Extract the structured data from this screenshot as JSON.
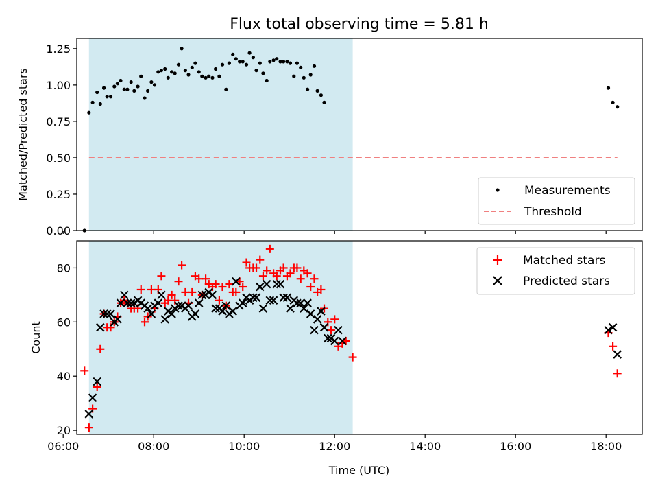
{
  "chart_data": [
    {
      "type": "scatter",
      "title": "Flux total observing time = 5.81 h",
      "xlabel": "",
      "ylabel": "Matched/Predicted stars",
      "xlim": [
        6.3,
        18.8
      ],
      "ylim": [
        0.0,
        1.32
      ],
      "xticks": [
        6,
        8,
        10,
        12,
        14,
        16,
        18
      ],
      "yticks": [
        0.0,
        0.25,
        0.5,
        0.75,
        1.0,
        1.25
      ],
      "ytick_labels": [
        "0.00",
        "0.25",
        "0.50",
        "0.75",
        "1.00",
        "1.25"
      ],
      "grid": false,
      "legend_position": "lower right",
      "observing_window": [
        6.57,
        12.4
      ],
      "window_color": "#add8e6",
      "series": [
        {
          "name": "Measurements",
          "marker": "dot",
          "color": "#000000",
          "points": [
            [
              6.47,
              0.0
            ],
            [
              6.57,
              0.81
            ],
            [
              6.65,
              0.88
            ],
            [
              6.75,
              0.95
            ],
            [
              6.82,
              0.87
            ],
            [
              6.9,
              0.98
            ],
            [
              6.97,
              0.92
            ],
            [
              7.05,
              0.92
            ],
            [
              7.13,
              0.99
            ],
            [
              7.2,
              1.01
            ],
            [
              7.27,
              1.03
            ],
            [
              7.35,
              0.97
            ],
            [
              7.42,
              0.97
            ],
            [
              7.5,
              1.02
            ],
            [
              7.57,
              0.96
            ],
            [
              7.65,
              0.99
            ],
            [
              7.72,
              1.06
            ],
            [
              7.8,
              0.91
            ],
            [
              7.87,
              0.96
            ],
            [
              7.95,
              1.02
            ],
            [
              8.02,
              1.0
            ],
            [
              8.1,
              1.09
            ],
            [
              8.17,
              1.1
            ],
            [
              8.25,
              1.11
            ],
            [
              8.32,
              1.05
            ],
            [
              8.4,
              1.09
            ],
            [
              8.47,
              1.08
            ],
            [
              8.55,
              1.14
            ],
            [
              8.62,
              1.25
            ],
            [
              8.7,
              1.1
            ],
            [
              8.77,
              1.07
            ],
            [
              8.85,
              1.12
            ],
            [
              8.92,
              1.15
            ],
            [
              9.0,
              1.09
            ],
            [
              9.07,
              1.06
            ],
            [
              9.15,
              1.05
            ],
            [
              9.22,
              1.06
            ],
            [
              9.3,
              1.05
            ],
            [
              9.37,
              1.11
            ],
            [
              9.45,
              1.06
            ],
            [
              9.52,
              1.14
            ],
            [
              9.6,
              0.97
            ],
            [
              9.67,
              1.15
            ],
            [
              9.75,
              1.21
            ],
            [
              9.82,
              1.18
            ],
            [
              9.9,
              1.16
            ],
            [
              9.97,
              1.16
            ],
            [
              10.05,
              1.14
            ],
            [
              10.12,
              1.22
            ],
            [
              10.2,
              1.19
            ],
            [
              10.27,
              1.1
            ],
            [
              10.35,
              1.15
            ],
            [
              10.42,
              1.08
            ],
            [
              10.5,
              1.03
            ],
            [
              10.57,
              1.16
            ],
            [
              10.65,
              1.17
            ],
            [
              10.72,
              1.18
            ],
            [
              10.8,
              1.16
            ],
            [
              10.87,
              1.16
            ],
            [
              10.95,
              1.16
            ],
            [
              11.02,
              1.15
            ],
            [
              11.1,
              1.06
            ],
            [
              11.17,
              1.15
            ],
            [
              11.25,
              1.12
            ],
            [
              11.32,
              1.05
            ],
            [
              11.4,
              0.97
            ],
            [
              11.47,
              1.07
            ],
            [
              11.55,
              1.13
            ],
            [
              11.62,
              0.96
            ],
            [
              11.7,
              0.93
            ],
            [
              11.77,
              0.88
            ],
            [
              18.05,
              0.98
            ],
            [
              18.15,
              0.88
            ],
            [
              18.25,
              0.85
            ]
          ]
        },
        {
          "name": "Threshold",
          "style": "dashed",
          "color": "#f08080",
          "x": [
            6.57,
            18.25
          ],
          "y": [
            0.5,
            0.5
          ]
        }
      ]
    },
    {
      "type": "scatter",
      "title": "",
      "xlabel": "Time (UTC)",
      "ylabel": "Count",
      "xlim": [
        6.3,
        18.8
      ],
      "ylim": [
        18.5,
        90.0
      ],
      "xticks": [
        6,
        8,
        10,
        12,
        14,
        16,
        18
      ],
      "xtick_labels": [
        "06:00",
        "08:00",
        "10:00",
        "12:00",
        "14:00",
        "16:00",
        "18:00"
      ],
      "yticks": [
        20,
        40,
        60,
        80
      ],
      "ytick_labels": [
        "20",
        "40",
        "60",
        "80"
      ],
      "grid": false,
      "legend_position": "upper right",
      "observing_window": [
        6.57,
        12.4
      ],
      "window_color": "#add8e6",
      "series": [
        {
          "name": "Matched stars",
          "marker": "plus",
          "color": "#ff0000",
          "points": [
            [
              6.47,
              42
            ],
            [
              6.57,
              21
            ],
            [
              6.65,
              28
            ],
            [
              6.75,
              36
            ],
            [
              6.82,
              50
            ],
            [
              6.9,
              63
            ],
            [
              6.97,
              58
            ],
            [
              7.05,
              58
            ],
            [
              7.13,
              60
            ],
            [
              7.2,
              62
            ],
            [
              7.27,
              67
            ],
            [
              7.35,
              68
            ],
            [
              7.42,
              67
            ],
            [
              7.5,
              65
            ],
            [
              7.57,
              65
            ],
            [
              7.65,
              65
            ],
            [
              7.72,
              72
            ],
            [
              7.8,
              60
            ],
            [
              7.87,
              62
            ],
            [
              7.95,
              72
            ],
            [
              8.02,
              65
            ],
            [
              8.1,
              72
            ],
            [
              8.17,
              77
            ],
            [
              8.25,
              67
            ],
            [
              8.32,
              68
            ],
            [
              8.4,
              70
            ],
            [
              8.47,
              68
            ],
            [
              8.55,
              75
            ],
            [
              8.62,
              81
            ],
            [
              8.7,
              71
            ],
            [
              8.77,
              67
            ],
            [
              8.85,
              71
            ],
            [
              8.92,
              77
            ],
            [
              9.0,
              76
            ],
            [
              9.07,
              70
            ],
            [
              9.15,
              76
            ],
            [
              9.22,
              74
            ],
            [
              9.3,
              73
            ],
            [
              9.37,
              74
            ],
            [
              9.45,
              68
            ],
            [
              9.52,
              73
            ],
            [
              9.6,
              66
            ],
            [
              9.67,
              74
            ],
            [
              9.75,
              71
            ],
            [
              9.82,
              71
            ],
            [
              9.9,
              75
            ],
            [
              9.97,
              73
            ],
            [
              10.05,
              82
            ],
            [
              10.12,
              80
            ],
            [
              10.2,
              80
            ],
            [
              10.27,
              80
            ],
            [
              10.35,
              83
            ],
            [
              10.42,
              77
            ],
            [
              10.5,
              79
            ],
            [
              10.57,
              87
            ],
            [
              10.65,
              78
            ],
            [
              10.72,
              77
            ],
            [
              10.8,
              79
            ],
            [
              10.87,
              80
            ],
            [
              10.95,
              77
            ],
            [
              11.02,
              78
            ],
            [
              11.1,
              80
            ],
            [
              11.17,
              80
            ],
            [
              11.25,
              76
            ],
            [
              11.32,
              79
            ],
            [
              11.4,
              78
            ],
            [
              11.47,
              73
            ],
            [
              11.55,
              76
            ],
            [
              11.62,
              71
            ],
            [
              11.7,
              72
            ],
            [
              11.77,
              65
            ],
            [
              11.85,
              60
            ],
            [
              11.92,
              57
            ],
            [
              12.0,
              61
            ],
            [
              12.08,
              51
            ],
            [
              12.17,
              52
            ],
            [
              12.25,
              53
            ],
            [
              12.4,
              47
            ],
            [
              18.05,
              56
            ],
            [
              18.15,
              51
            ],
            [
              18.25,
              41
            ]
          ]
        },
        {
          "name": "Predicted stars",
          "marker": "x",
          "color": "#000000",
          "points": [
            [
              6.57,
              26
            ],
            [
              6.65,
              32
            ],
            [
              6.75,
              38
            ],
            [
              6.82,
              58
            ],
            [
              6.9,
              63
            ],
            [
              6.97,
              63
            ],
            [
              7.05,
              63
            ],
            [
              7.13,
              60
            ],
            [
              7.2,
              61
            ],
            [
              7.27,
              67
            ],
            [
              7.35,
              70
            ],
            [
              7.42,
              67
            ],
            [
              7.5,
              67
            ],
            [
              7.57,
              67
            ],
            [
              7.65,
              68
            ],
            [
              7.72,
              67
            ],
            [
              7.8,
              66
            ],
            [
              7.87,
              65
            ],
            [
              7.95,
              63
            ],
            [
              8.02,
              66
            ],
            [
              8.1,
              67
            ],
            [
              8.17,
              70
            ],
            [
              8.25,
              61
            ],
            [
              8.32,
              64
            ],
            [
              8.4,
              63
            ],
            [
              8.47,
              65
            ],
            [
              8.55,
              66
            ],
            [
              8.62,
              66
            ],
            [
              8.7,
              65
            ],
            [
              8.77,
              66
            ],
            [
              8.85,
              62
            ],
            [
              8.92,
              63
            ],
            [
              9.0,
              67
            ],
            [
              9.07,
              70
            ],
            [
              9.15,
              70
            ],
            [
              9.22,
              71
            ],
            [
              9.3,
              70
            ],
            [
              9.37,
              65
            ],
            [
              9.45,
              65
            ],
            [
              9.52,
              64
            ],
            [
              9.6,
              66
            ],
            [
              9.67,
              63
            ],
            [
              9.75,
              64
            ],
            [
              9.82,
              75
            ],
            [
              9.9,
              66
            ],
            [
              9.97,
              67
            ],
            [
              10.05,
              69
            ],
            [
              10.12,
              68
            ],
            [
              10.2,
              69
            ],
            [
              10.27,
              69
            ],
            [
              10.35,
              73
            ],
            [
              10.42,
              65
            ],
            [
              10.5,
              74
            ],
            [
              10.57,
              68
            ],
            [
              10.65,
              68
            ],
            [
              10.72,
              74
            ],
            [
              10.8,
              74
            ],
            [
              10.87,
              69
            ],
            [
              10.95,
              69
            ],
            [
              11.02,
              65
            ],
            [
              11.1,
              68
            ],
            [
              11.17,
              67
            ],
            [
              11.25,
              67
            ],
            [
              11.32,
              65
            ],
            [
              11.4,
              67
            ],
            [
              11.47,
              63
            ],
            [
              11.55,
              57
            ],
            [
              11.62,
              61
            ],
            [
              11.7,
              64
            ],
            [
              11.77,
              58
            ],
            [
              11.85,
              54
            ],
            [
              11.92,
              54
            ],
            [
              12.0,
              53
            ],
            [
              12.08,
              57
            ],
            [
              12.17,
              53
            ],
            [
              18.05,
              57
            ],
            [
              18.15,
              58
            ],
            [
              18.25,
              48
            ]
          ]
        }
      ]
    }
  ]
}
